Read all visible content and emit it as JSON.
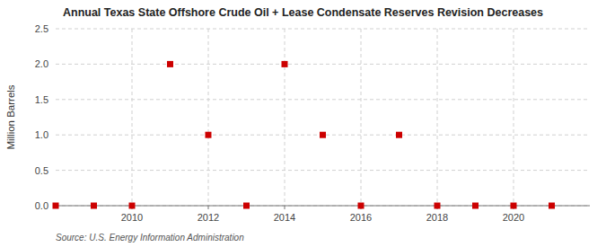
{
  "chart_data": {
    "type": "scatter",
    "title": "Annual Texas State Offshore Crude Oil + Lease Condensate Reserves Revision Decreases",
    "ylabel": "Million Barrels",
    "source": "Source: U.S. Energy Information Administration",
    "x": [
      2008,
      2009,
      2010,
      2011,
      2012,
      2013,
      2014,
      2015,
      2016,
      2017,
      2018,
      2019,
      2020,
      2021
    ],
    "values": [
      0.0,
      0.0,
      0.0,
      2.0,
      1.0,
      0.0,
      2.0,
      1.0,
      0.0,
      1.0,
      0.0,
      0.0,
      0.0,
      0.0
    ],
    "color": "#cc0000",
    "marker": "square",
    "xlim": [
      2008.0,
      2022.0
    ],
    "ylim": [
      0.0,
      2.5
    ],
    "xticks": [
      2010,
      2012,
      2014,
      2016,
      2018,
      2020
    ],
    "yticks": [
      {
        "value": 0.0,
        "label": "0.0"
      },
      0.5,
      {
        "value": 1.0,
        "label": "1.0"
      },
      1.5,
      {
        "value": 2.0,
        "label": "2.0"
      },
      2.5
    ],
    "grid": true
  }
}
